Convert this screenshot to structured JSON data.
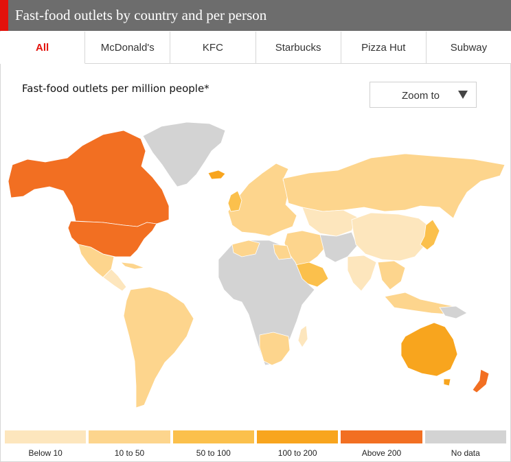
{
  "header": {
    "title": "Fast-food outlets by country and per person"
  },
  "tabs": [
    {
      "label": "All",
      "active": true
    },
    {
      "label": "McDonald's",
      "active": false
    },
    {
      "label": "KFC",
      "active": false
    },
    {
      "label": "Starbucks",
      "active": false
    },
    {
      "label": "Pizza Hut",
      "active": false
    },
    {
      "label": "Subway",
      "active": false
    }
  ],
  "map": {
    "subtitle": "Fast-food outlets per million people*",
    "zoom_label": "Zoom to"
  },
  "legend": [
    {
      "label": "Below 10",
      "color": "#fde6bd"
    },
    {
      "label": "10 to 50",
      "color": "#fdd58d"
    },
    {
      "label": "50 to 100",
      "color": "#fbc04c"
    },
    {
      "label": "100 to 200",
      "color": "#f8a51e"
    },
    {
      "label": "Above 200",
      "color": "#f26f22"
    },
    {
      "label": "No data",
      "color": "#d3d3d3"
    }
  ]
}
